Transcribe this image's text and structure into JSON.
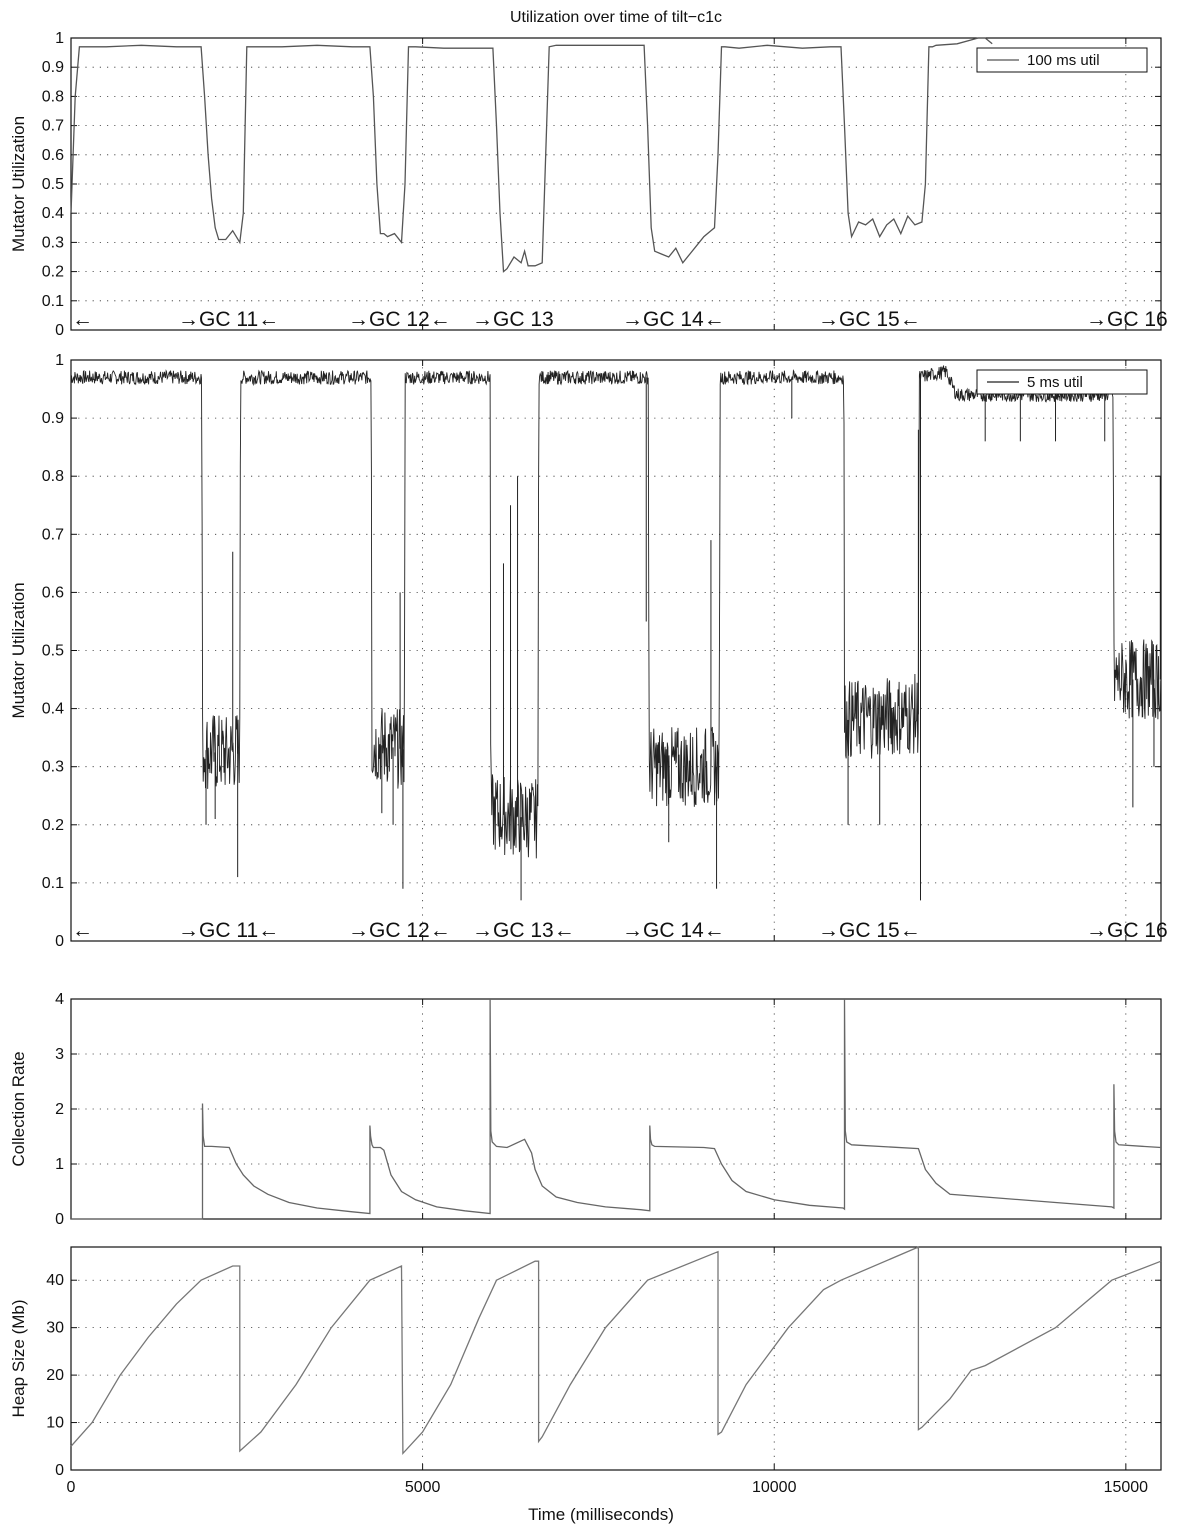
{
  "chart_data": [
    {
      "type": "line",
      "title": "Utilization over time of tilt−c1c",
      "xlabel": "",
      "ylabel": "Mutator Utilization",
      "xlim": [
        0,
        15500
      ],
      "ylim": [
        0,
        1
      ],
      "yticks": [
        0,
        0.1,
        0.2,
        0.3,
        0.4,
        0.5,
        0.6,
        0.7,
        0.8,
        0.9,
        1
      ],
      "ytick_labels": [
        "0",
        "0.1",
        "0.2",
        "0.3",
        "0.4",
        "0.5",
        "0.6",
        "0.7",
        "0.8",
        "0.9",
        "1"
      ],
      "grid": true,
      "legend_position": "top-right",
      "series": [
        {
          "name": "100 ms util",
          "color": "#555555",
          "x": [
            0,
            60,
            120,
            200,
            500,
            1000,
            1500,
            1850,
            1900,
            1950,
            2000,
            2050,
            2100,
            2200,
            2300,
            2400,
            2450,
            2500,
            2600,
            3000,
            3500,
            4000,
            4250,
            4300,
            4350,
            4400,
            4450,
            4500,
            4600,
            4700,
            4750,
            4800,
            4900,
            5300,
            5800,
            6000,
            6050,
            6100,
            6150,
            6200,
            6300,
            6400,
            6450,
            6500,
            6600,
            6700,
            6750,
            6800,
            6900,
            7300,
            7800,
            8150,
            8200,
            8250,
            8300,
            8400,
            8500,
            8600,
            8700,
            8800,
            8900,
            9000,
            9100,
            9150,
            9200,
            9250,
            9300,
            9500,
            9900,
            10400,
            10800,
            10950,
            11000,
            11050,
            11100,
            11200,
            11300,
            11400,
            11500,
            11600,
            11700,
            11800,
            11900,
            12000,
            12100,
            12150,
            12200,
            12250,
            12300,
            12600,
            12900,
            13000,
            13100
          ],
          "y": [
            0.4,
            0.8,
            0.97,
            0.97,
            0.97,
            0.975,
            0.97,
            0.97,
            0.8,
            0.6,
            0.45,
            0.35,
            0.31,
            0.31,
            0.34,
            0.3,
            0.4,
            0.97,
            0.97,
            0.97,
            0.975,
            0.97,
            0.97,
            0.8,
            0.5,
            0.33,
            0.33,
            0.32,
            0.33,
            0.3,
            0.5,
            0.97,
            0.97,
            0.965,
            0.965,
            0.965,
            0.7,
            0.4,
            0.2,
            0.21,
            0.25,
            0.23,
            0.27,
            0.22,
            0.22,
            0.23,
            0.6,
            0.97,
            0.975,
            0.975,
            0.975,
            0.975,
            0.7,
            0.35,
            0.27,
            0.26,
            0.25,
            0.28,
            0.23,
            0.26,
            0.29,
            0.32,
            0.34,
            0.35,
            0.6,
            0.97,
            0.97,
            0.965,
            0.975,
            0.965,
            0.97,
            0.97,
            0.7,
            0.4,
            0.32,
            0.37,
            0.36,
            0.38,
            0.32,
            0.36,
            0.38,
            0.33,
            0.39,
            0.36,
            0.37,
            0.5,
            0.97,
            0.97,
            0.975,
            0.98,
            1.0,
            1.0,
            0.98
          ]
        }
      ],
      "annotations": [
        "←",
        "→GC 11←",
        "→GC 12←",
        "→GC 13",
        "→GC 14←",
        "→GC 15←",
        "→GC 16"
      ]
    },
    {
      "type": "line",
      "title": "",
      "xlabel": "",
      "ylabel": "Mutator Utilization",
      "xlim": [
        0,
        15500
      ],
      "ylim": [
        0,
        1
      ],
      "yticks": [
        0,
        0.1,
        0.2,
        0.3,
        0.4,
        0.5,
        0.6,
        0.7,
        0.8,
        0.9,
        1
      ],
      "ytick_labels": [
        "0",
        "0.1",
        "0.2",
        "0.3",
        "0.4",
        "0.5",
        "0.6",
        "0.7",
        "0.8",
        "0.9",
        "1"
      ],
      "grid": true,
      "legend_position": "top-right",
      "series": [
        {
          "name": "5 ms util",
          "color": "#222222",
          "base": {
            "x": [
              0,
              1850,
              1860,
              1870,
              2200,
              2380,
              2400,
              2410,
              4260,
              4270,
              4280,
              4720,
              4740,
              4750,
              5950,
              5960,
              5970,
              6600,
              6640,
              6650,
              8200,
              8210,
              8220,
              9200,
              9220,
              9230,
              10980,
              10990,
              11000,
              12020,
              12050,
              12060,
              12450,
              12550,
              12600,
              14800,
              14820,
              14830,
              15500
            ],
            "y": [
              0.97,
              0.97,
              0.97,
              0.33,
              0.32,
              0.33,
              0.33,
              0.97,
              0.97,
              0.97,
              0.34,
              0.33,
              0.33,
              0.97,
              0.97,
              0.97,
              0.22,
              0.21,
              0.21,
              0.97,
              0.97,
              0.97,
              0.3,
              0.3,
              0.3,
              0.97,
              0.97,
              0.97,
              0.38,
              0.39,
              0.39,
              0.97,
              0.98,
              0.95,
              0.94,
              0.94,
              0.94,
              0.45,
              0.45
            ]
          },
          "spikes": [
            {
              "x": 1920,
              "y": 0.2
            },
            {
              "x": 2050,
              "y": 0.21
            },
            {
              "x": 2300,
              "y": 0.67
            },
            {
              "x": 2370,
              "y": 0.11
            },
            {
              "x": 4420,
              "y": 0.22
            },
            {
              "x": 4580,
              "y": 0.2
            },
            {
              "x": 4680,
              "y": 0.6
            },
            {
              "x": 4720,
              "y": 0.09
            },
            {
              "x": 6150,
              "y": 0.65
            },
            {
              "x": 6250,
              "y": 0.75
            },
            {
              "x": 6350,
              "y": 0.8
            },
            {
              "x": 6400,
              "y": 0.07
            },
            {
              "x": 8180,
              "y": 0.55
            },
            {
              "x": 8500,
              "y": 0.17
            },
            {
              "x": 9100,
              "y": 0.69
            },
            {
              "x": 9180,
              "y": 0.09
            },
            {
              "x": 10250,
              "y": 0.9
            },
            {
              "x": 11050,
              "y": 0.2
            },
            {
              "x": 11500,
              "y": 0.2
            },
            {
              "x": 12050,
              "y": 0.88
            },
            {
              "x": 12080,
              "y": 0.07
            },
            {
              "x": 13000,
              "y": 0.86
            },
            {
              "x": 13500,
              "y": 0.86
            },
            {
              "x": 14000,
              "y": 0.86
            },
            {
              "x": 14700,
              "y": 0.86
            },
            {
              "x": 15100,
              "y": 0.23
            },
            {
              "x": 15400,
              "y": 0.3
            },
            {
              "x": 15490,
              "y": 0.8
            }
          ]
        }
      ],
      "annotations": [
        "←",
        "→GC 11←",
        "→GC 12←",
        "→GC 13←",
        "→GC 14←",
        "→GC 15←",
        "→GC 16"
      ]
    },
    {
      "type": "line",
      "title": "",
      "xlabel": "",
      "ylabel": "Collection Rate",
      "xlim": [
        0,
        15500
      ],
      "ylim": [
        0,
        4
      ],
      "yticks": [
        0,
        1,
        2,
        3,
        4
      ],
      "ytick_labels": [
        "0",
        "1",
        "2",
        "3",
        "4"
      ],
      "grid": true,
      "series": [
        {
          "name": "",
          "color": "#666666",
          "x": [
            0,
            1870,
            1870,
            1880,
            1900,
            2000,
            2250,
            2350,
            2450,
            2600,
            2800,
            3100,
            3500,
            4000,
            4250,
            4250,
            4260,
            4280,
            4300,
            4400,
            4450,
            4550,
            4700,
            4900,
            5200,
            5600,
            5960,
            5960,
            5970,
            5990,
            6050,
            6200,
            6450,
            6550,
            6600,
            6700,
            6900,
            7200,
            7600,
            8100,
            8230,
            8230,
            8240,
            8260,
            8300,
            9000,
            9150,
            9250,
            9400,
            9600,
            10000,
            10500,
            10980,
            11000,
            11000,
            11010,
            11030,
            11100,
            12050,
            12150,
            12300,
            12500,
            13000,
            14000,
            14800,
            14830,
            14830,
            14840,
            14860,
            14900,
            15500
          ],
          "y": [
            0,
            0,
            2.1,
            1.5,
            1.32,
            1.32,
            1.3,
            1.0,
            0.8,
            0.6,
            0.45,
            0.3,
            0.2,
            0.13,
            0.1,
            1.7,
            1.5,
            1.35,
            1.3,
            1.3,
            1.25,
            0.8,
            0.5,
            0.35,
            0.22,
            0.15,
            0.1,
            4.0,
            1.6,
            1.4,
            1.32,
            1.3,
            1.45,
            1.2,
            0.9,
            0.6,
            0.4,
            0.3,
            0.22,
            0.17,
            0.15,
            1.7,
            1.45,
            1.35,
            1.32,
            1.3,
            1.28,
            1.0,
            0.7,
            0.5,
            0.35,
            0.25,
            0.2,
            0.18,
            4.0,
            1.6,
            1.4,
            1.35,
            1.28,
            0.9,
            0.65,
            0.45,
            0.4,
            0.3,
            0.22,
            0.2,
            2.45,
            1.6,
            1.4,
            1.35,
            1.3
          ]
        }
      ]
    },
    {
      "type": "line",
      "title": "",
      "xlabel": "Time (milliseconds)",
      "ylabel": "Heap Size (Mb)",
      "xlim": [
        0,
        15500
      ],
      "ylim": [
        0,
        47
      ],
      "xticks": [
        0,
        5000,
        10000,
        15000
      ],
      "xtick_labels": [
        "0",
        "5000",
        "10000",
        "15000"
      ],
      "yticks": [
        0,
        10,
        20,
        30,
        40
      ],
      "ytick_labels": [
        "0",
        "10",
        "20",
        "30",
        "40"
      ],
      "grid": true,
      "series": [
        {
          "name": "",
          "color": "#777777",
          "x": [
            0,
            300,
            700,
            1100,
            1500,
            1850,
            2300,
            2400,
            2400,
            2700,
            3200,
            3700,
            4250,
            4700,
            4700,
            4720,
            5000,
            5400,
            5800,
            6050,
            6600,
            6650,
            6650,
            6700,
            7100,
            7600,
            8200,
            9200,
            9200,
            9250,
            9600,
            10200,
            10700,
            10950,
            12050,
            12050,
            12100,
            12500,
            12800,
            13000,
            14000,
            14800,
            15500
          ],
          "y": [
            5,
            10,
            20,
            28,
            35,
            40,
            43,
            43,
            4,
            8,
            18,
            30,
            40,
            43,
            43,
            3.5,
            8,
            18,
            32,
            40,
            44,
            44,
            6,
            7,
            18,
            30,
            40,
            46,
            7.5,
            8,
            18,
            30,
            38,
            40,
            47,
            8.5,
            9,
            15,
            21,
            22,
            30,
            40,
            44
          ]
        }
      ]
    }
  ]
}
